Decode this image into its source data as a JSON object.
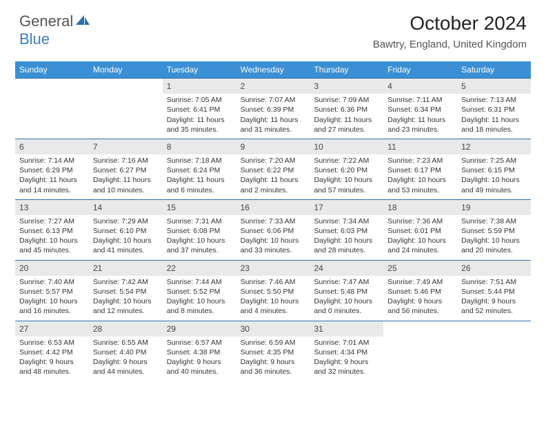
{
  "logo": {
    "part1": "General",
    "part2": "Blue"
  },
  "title": "October 2024",
  "subtitle": "Bawtry, England, United Kingdom",
  "colors": {
    "header_bg": "#3b8fd4",
    "row_sep": "#2f6fa8",
    "daynum_bg": "#e9e9e9",
    "text": "#333333"
  },
  "daysOfWeek": [
    "Sunday",
    "Monday",
    "Tuesday",
    "Wednesday",
    "Thursday",
    "Friday",
    "Saturday"
  ],
  "startOffset": 2,
  "days": [
    {
      "n": 1,
      "sunrise": "7:05 AM",
      "sunset": "6:41 PM",
      "daylight": "11 hours and 35 minutes."
    },
    {
      "n": 2,
      "sunrise": "7:07 AM",
      "sunset": "6:39 PM",
      "daylight": "11 hours and 31 minutes."
    },
    {
      "n": 3,
      "sunrise": "7:09 AM",
      "sunset": "6:36 PM",
      "daylight": "11 hours and 27 minutes."
    },
    {
      "n": 4,
      "sunrise": "7:11 AM",
      "sunset": "6:34 PM",
      "daylight": "11 hours and 23 minutes."
    },
    {
      "n": 5,
      "sunrise": "7:13 AM",
      "sunset": "6:31 PM",
      "daylight": "11 hours and 18 minutes."
    },
    {
      "n": 6,
      "sunrise": "7:14 AM",
      "sunset": "6:29 PM",
      "daylight": "11 hours and 14 minutes."
    },
    {
      "n": 7,
      "sunrise": "7:16 AM",
      "sunset": "6:27 PM",
      "daylight": "11 hours and 10 minutes."
    },
    {
      "n": 8,
      "sunrise": "7:18 AM",
      "sunset": "6:24 PM",
      "daylight": "11 hours and 6 minutes."
    },
    {
      "n": 9,
      "sunrise": "7:20 AM",
      "sunset": "6:22 PM",
      "daylight": "11 hours and 2 minutes."
    },
    {
      "n": 10,
      "sunrise": "7:22 AM",
      "sunset": "6:20 PM",
      "daylight": "10 hours and 57 minutes."
    },
    {
      "n": 11,
      "sunrise": "7:23 AM",
      "sunset": "6:17 PM",
      "daylight": "10 hours and 53 minutes."
    },
    {
      "n": 12,
      "sunrise": "7:25 AM",
      "sunset": "6:15 PM",
      "daylight": "10 hours and 49 minutes."
    },
    {
      "n": 13,
      "sunrise": "7:27 AM",
      "sunset": "6:13 PM",
      "daylight": "10 hours and 45 minutes."
    },
    {
      "n": 14,
      "sunrise": "7:29 AM",
      "sunset": "6:10 PM",
      "daylight": "10 hours and 41 minutes."
    },
    {
      "n": 15,
      "sunrise": "7:31 AM",
      "sunset": "6:08 PM",
      "daylight": "10 hours and 37 minutes."
    },
    {
      "n": 16,
      "sunrise": "7:33 AM",
      "sunset": "6:06 PM",
      "daylight": "10 hours and 33 minutes."
    },
    {
      "n": 17,
      "sunrise": "7:34 AM",
      "sunset": "6:03 PM",
      "daylight": "10 hours and 28 minutes."
    },
    {
      "n": 18,
      "sunrise": "7:36 AM",
      "sunset": "6:01 PM",
      "daylight": "10 hours and 24 minutes."
    },
    {
      "n": 19,
      "sunrise": "7:38 AM",
      "sunset": "5:59 PM",
      "daylight": "10 hours and 20 minutes."
    },
    {
      "n": 20,
      "sunrise": "7:40 AM",
      "sunset": "5:57 PM",
      "daylight": "10 hours and 16 minutes."
    },
    {
      "n": 21,
      "sunrise": "7:42 AM",
      "sunset": "5:54 PM",
      "daylight": "10 hours and 12 minutes."
    },
    {
      "n": 22,
      "sunrise": "7:44 AM",
      "sunset": "5:52 PM",
      "daylight": "10 hours and 8 minutes."
    },
    {
      "n": 23,
      "sunrise": "7:46 AM",
      "sunset": "5:50 PM",
      "daylight": "10 hours and 4 minutes."
    },
    {
      "n": 24,
      "sunrise": "7:47 AM",
      "sunset": "5:48 PM",
      "daylight": "10 hours and 0 minutes."
    },
    {
      "n": 25,
      "sunrise": "7:49 AM",
      "sunset": "5:46 PM",
      "daylight": "9 hours and 56 minutes."
    },
    {
      "n": 26,
      "sunrise": "7:51 AM",
      "sunset": "5:44 PM",
      "daylight": "9 hours and 52 minutes."
    },
    {
      "n": 27,
      "sunrise": "6:53 AM",
      "sunset": "4:42 PM",
      "daylight": "9 hours and 48 minutes."
    },
    {
      "n": 28,
      "sunrise": "6:55 AM",
      "sunset": "4:40 PM",
      "daylight": "9 hours and 44 minutes."
    },
    {
      "n": 29,
      "sunrise": "6:57 AM",
      "sunset": "4:38 PM",
      "daylight": "9 hours and 40 minutes."
    },
    {
      "n": 30,
      "sunrise": "6:59 AM",
      "sunset": "4:35 PM",
      "daylight": "9 hours and 36 minutes."
    },
    {
      "n": 31,
      "sunrise": "7:01 AM",
      "sunset": "4:34 PM",
      "daylight": "9 hours and 32 minutes."
    }
  ],
  "labels": {
    "sunrise": "Sunrise:",
    "sunset": "Sunset:",
    "daylight": "Daylight:"
  }
}
